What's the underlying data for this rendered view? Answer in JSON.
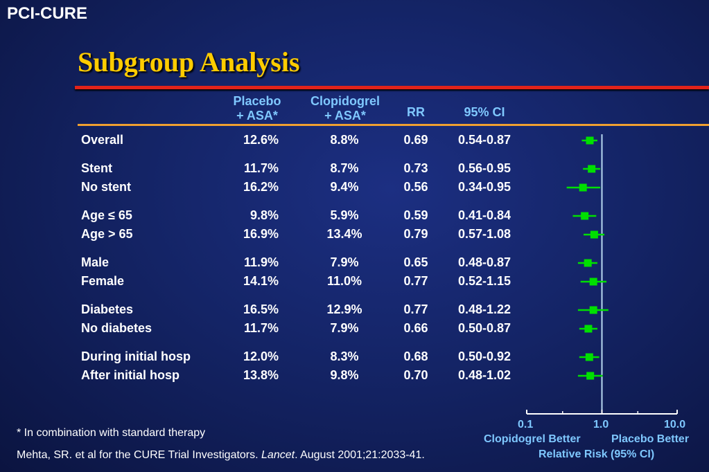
{
  "header_tag": "PCI-CURE",
  "title": "Subgroup Analysis",
  "columns": {
    "placebo": [
      "Placebo",
      "+ ASA*"
    ],
    "clopidogrel": [
      "Clopidogrel",
      "+ ASA*"
    ],
    "rr": "RR",
    "ci": "95% CI"
  },
  "rows": [
    {
      "label": "Overall",
      "placebo": "12.6%",
      "clopidogrel": "8.8%",
      "rr": "0.69",
      "ci": "0.54-0.87"
    },
    {
      "label": "Stent",
      "placebo": "11.7%",
      "clopidogrel": "8.7%",
      "rr": "0.73",
      "ci": "0.56-0.95"
    },
    {
      "label": "No stent",
      "placebo": "16.2%",
      "clopidogrel": "9.4%",
      "rr": "0.56",
      "ci": "0.34-0.95"
    },
    {
      "label": "Age ≤ 65",
      "placebo": "9.8%",
      "clopidogrel": "5.9%",
      "rr": "0.59",
      "ci": "0.41-0.84"
    },
    {
      "label": "Age > 65",
      "placebo": "16.9%",
      "clopidogrel": "13.4%",
      "rr": "0.79",
      "ci": "0.57-1.08"
    },
    {
      "label": "Male",
      "placebo": "11.9%",
      "clopidogrel": "7.9%",
      "rr": "0.65",
      "ci": "0.48-0.87"
    },
    {
      "label": "Female",
      "placebo": "14.1%",
      "clopidogrel": "11.0%",
      "rr": "0.77",
      "ci": "0.52-1.15"
    },
    {
      "label": "Diabetes",
      "placebo": "16.5%",
      "clopidogrel": "12.9%",
      "rr": "0.77",
      "ci": "0.48-1.22"
    },
    {
      "label": "No diabetes",
      "placebo": "11.7%",
      "clopidogrel": "7.9%",
      "rr": "0.66",
      "ci": "0.50-0.87"
    },
    {
      "label": "During initial hosp",
      "placebo": "12.0%",
      "clopidogrel": "8.3%",
      "rr": "0.68",
      "ci": "0.50-0.92"
    },
    {
      "label": "After initial hosp",
      "placebo": "13.8%",
      "clopidogrel": "9.8%",
      "rr": "0.70",
      "ci": "0.48-1.02"
    }
  ],
  "footnote": "* In combination with standard therapy",
  "citation": {
    "pre": "Mehta, SR. et al for the CURE Trial Investigators. ",
    "journal": "Lancet",
    "post": ". August 2001;21:2033-41."
  },
  "axis": {
    "left_label": "Clopidogrel Better",
    "right_label": "Placebo Better",
    "title": "Relative Risk (95% CI)"
  },
  "colors": {
    "accent": "#ffcc00",
    "header": "#7fc8ff",
    "marker": "#00e000",
    "red_rule": "#e2231a",
    "orange_rule": "#f0a030"
  },
  "chart_data": {
    "type": "forest",
    "scale": "log",
    "xlim": [
      0.1,
      10.0
    ],
    "reference_line": 1.0,
    "xticks": [
      "0.1",
      "1.0",
      "10.0"
    ],
    "points": [
      {
        "label": "Overall",
        "rr": 0.69,
        "lo": 0.54,
        "hi": 0.87
      },
      {
        "label": "Stent",
        "rr": 0.73,
        "lo": 0.56,
        "hi": 0.95
      },
      {
        "label": "No stent",
        "rr": 0.56,
        "lo": 0.34,
        "hi": 0.95
      },
      {
        "label": "Age ≤ 65",
        "rr": 0.59,
        "lo": 0.41,
        "hi": 0.84
      },
      {
        "label": "Age > 65",
        "rr": 0.79,
        "lo": 0.57,
        "hi": 1.08
      },
      {
        "label": "Male",
        "rr": 0.65,
        "lo": 0.48,
        "hi": 0.87
      },
      {
        "label": "Female",
        "rr": 0.77,
        "lo": 0.52,
        "hi": 1.15
      },
      {
        "label": "Diabetes",
        "rr": 0.77,
        "lo": 0.48,
        "hi": 1.22
      },
      {
        "label": "No diabetes",
        "rr": 0.66,
        "lo": 0.5,
        "hi": 0.87
      },
      {
        "label": "During initial hosp",
        "rr": 0.68,
        "lo": 0.5,
        "hi": 0.92
      },
      {
        "label": "After initial hosp",
        "rr": 0.7,
        "lo": 0.48,
        "hi": 1.02
      }
    ]
  }
}
